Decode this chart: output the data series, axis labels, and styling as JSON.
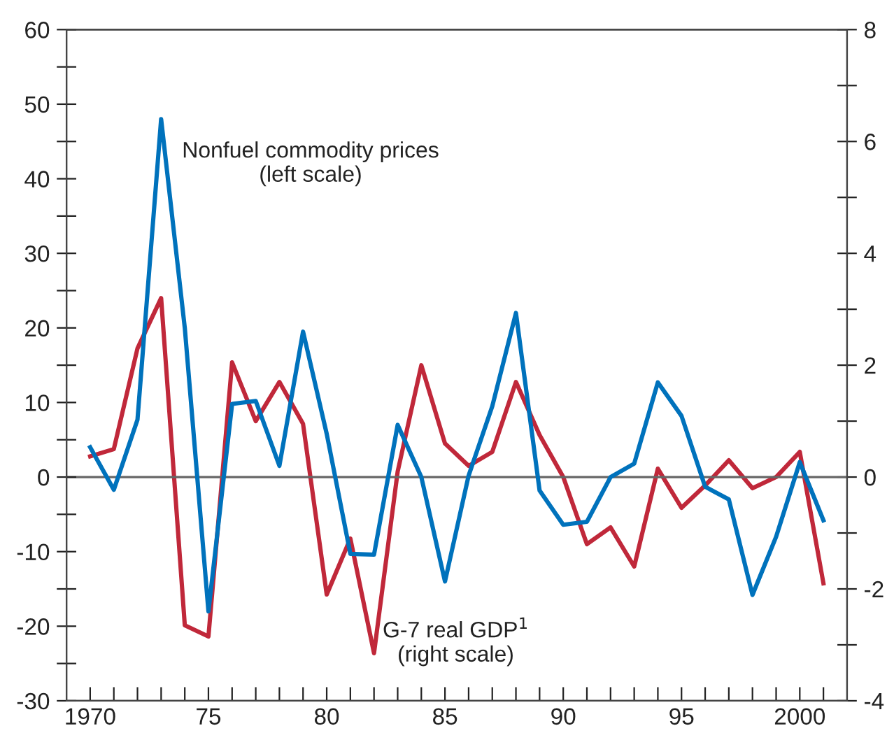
{
  "chart_data": {
    "type": "line",
    "x": [
      1970,
      1971,
      1972,
      1973,
      1974,
      1975,
      1976,
      1977,
      1978,
      1979,
      1980,
      1981,
      1982,
      1983,
      1984,
      1985,
      1986,
      1987,
      1988,
      1989,
      1990,
      1991,
      1992,
      1993,
      1994,
      1995,
      1996,
      1997,
      1998,
      1999,
      2000,
      2001
    ],
    "series": [
      {
        "name": "Nonfuel commodity prices\n(left scale)",
        "color": "#0072bc",
        "values": [
          4,
          -1.7,
          7.7,
          48,
          20,
          -18,
          9.8,
          10.2,
          1.5,
          19.5,
          5.8,
          -10.3,
          -10.4,
          7,
          0,
          -14,
          0.2,
          9.5,
          22,
          -1.8,
          -6.4,
          -6,
          0,
          1.8,
          12.7,
          8.2,
          -1.3,
          -3,
          -15.8,
          -8,
          2,
          -5.8
        ]
      },
      {
        "name": "G-7 real GDP$^{1}$\n(right scale)",
        "color": "#c0283a",
        "axis": "y2",
        "values": [
          0.37,
          0.5,
          2.3,
          3.2,
          -2.65,
          -2.85,
          2.05,
          1.0,
          1.7,
          0.95,
          -2.1,
          -1.1,
          -3.15,
          0.1,
          2.0,
          0.6,
          0.2,
          0.45,
          1.7,
          0.75,
          0,
          -1.2,
          -0.9,
          -1.6,
          0.15,
          -0.55,
          -0.15,
          0.3,
          -0.2,
          0,
          0.45,
          -1.9
        ]
      }
    ],
    "xlim": [
      1969,
      2002
    ],
    "xticks": [
      {
        "value": 1970,
        "label": "1970"
      },
      {
        "value": 1971,
        "label": null
      },
      {
        "value": 1972,
        "label": null
      },
      {
        "value": 1973,
        "label": null
      },
      {
        "value": 1974,
        "label": null
      },
      {
        "value": 1975,
        "label": "75"
      },
      {
        "value": 1976,
        "label": null
      },
      {
        "value": 1977,
        "label": null
      },
      {
        "value": 1978,
        "label": null
      },
      {
        "value": 1979,
        "label": null
      },
      {
        "value": 1980,
        "label": "80"
      },
      {
        "value": 1981,
        "label": null
      },
      {
        "value": 1982,
        "label": null
      },
      {
        "value": 1983,
        "label": null
      },
      {
        "value": 1984,
        "label": null
      },
      {
        "value": 1985,
        "label": "85"
      },
      {
        "value": 1986,
        "label": null
      },
      {
        "value": 1987,
        "label": null
      },
      {
        "value": 1988,
        "label": null
      },
      {
        "value": 1989,
        "label": null
      },
      {
        "value": 1990,
        "label": "90"
      },
      {
        "value": 1991,
        "label": null
      },
      {
        "value": 1992,
        "label": null
      },
      {
        "value": 1993,
        "label": null
      },
      {
        "value": 1994,
        "label": null
      },
      {
        "value": 1995,
        "label": "95"
      },
      {
        "value": 1996,
        "label": null
      },
      {
        "value": 1997,
        "label": null
      },
      {
        "value": 1998,
        "label": null
      },
      {
        "value": 1999,
        "label": null
      },
      {
        "value": 2000,
        "label": "2000"
      },
      {
        "value": 2001,
        "label": null
      }
    ],
    "ylim": [
      -30,
      60
    ],
    "yticks": [
      -30,
      {
        "value": -25,
        "label": null
      },
      -20,
      {
        "value": -15,
        "label": null
      },
      -10,
      {
        "value": -5,
        "label": null
      },
      0,
      {
        "value": 5,
        "label": null
      },
      10,
      {
        "value": 15,
        "label": null
      },
      20,
      {
        "value": 25,
        "label": null
      },
      30,
      {
        "value": 35,
        "label": null
      },
      40,
      {
        "value": 45,
        "label": null
      },
      50,
      {
        "value": 55,
        "label": null
      },
      60
    ],
    "y2lim": [
      -4,
      8
    ],
    "y2ticks": [
      -4,
      {
        "value": -3,
        "label": null
      },
      -2,
      {
        "value": -1,
        "label": null
      },
      0,
      {
        "value": 1,
        "label": null
      },
      2,
      {
        "value": 3,
        "label": null
      },
      4,
      {
        "value": 5,
        "label": null
      },
      6,
      {
        "value": 7,
        "label": null
      },
      8
    ],
    "ref_lines": [
      {
        "axis": "y",
        "value": 0,
        "color": "#666666"
      }
    ],
    "grid": false,
    "legend": false,
    "line_style": "solid",
    "marker": "none"
  }
}
